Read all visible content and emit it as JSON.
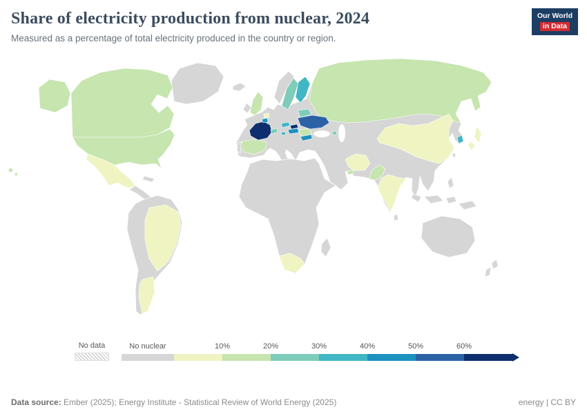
{
  "header": {
    "title": "Share of electricity production from nuclear, 2024",
    "subtitle": "Measured as a percentage of total electricity produced in the country or region.",
    "logo": {
      "line1": "Our World",
      "line2": "in Data",
      "bg": "#1d3d63",
      "accent": "#d42b32"
    }
  },
  "legend": {
    "no_data_label": "No data",
    "no_nuclear_label": "No nuclear",
    "no_nuclear_color": "#d6d6d6",
    "bins": [
      {
        "min_label": "",
        "color": "#eff4c2"
      },
      {
        "min_label": "10%",
        "color": "#c6e5af"
      },
      {
        "min_label": "20%",
        "color": "#7fccba"
      },
      {
        "min_label": "30%",
        "color": "#41b6c4"
      },
      {
        "min_label": "40%",
        "color": "#1d91c0"
      },
      {
        "min_label": "50%",
        "color": "#2c62a5"
      },
      {
        "min_label": "60%",
        "color": "#0e2f6d"
      }
    ]
  },
  "footer": {
    "source_label": "Data source:",
    "source_text": " Ember (2025); Energy Institute - Statistical Review of World Energy (2025)",
    "license": "energy | CC BY"
  },
  "chart_data": {
    "type": "heatmap",
    "subtype": "choropleth-world-map",
    "title": "Share of electricity production from nuclear, 2024",
    "unit": "% of total electricity production",
    "year": "2024",
    "categories": [
      "No data",
      "No nuclear",
      "0–10%",
      "10–20%",
      "20–30%",
      "30–40%",
      "40–50%",
      "50–60%",
      "60%+"
    ],
    "bin_colors": {
      "No nuclear": "#d6d6d6",
      "0–10%": "#eff4c2",
      "10–20%": "#c6e5af",
      "20–30%": "#7fccba",
      "30–40%": "#41b6c4",
      "40–50%": "#1d91c0",
      "50–60%": "#2c62a5",
      "60%+": "#0e2f6d"
    },
    "countries": [
      {
        "id": "france",
        "name": "France",
        "bin": "60%+"
      },
      {
        "id": "slovakia",
        "name": "Slovakia",
        "bin": "60%+"
      },
      {
        "id": "ukraine",
        "name": "Ukraine",
        "bin": "50–60%"
      },
      {
        "id": "hungary",
        "name": "Hungary",
        "bin": "40–50%"
      },
      {
        "id": "belgium",
        "name": "Belgium",
        "bin": "40–50%"
      },
      {
        "id": "bulgaria",
        "name": "Bulgaria",
        "bin": "40–50%"
      },
      {
        "id": "czechia",
        "name": "Czechia",
        "bin": "30–40%"
      },
      {
        "id": "finland",
        "name": "Finland",
        "bin": "30–40%"
      },
      {
        "id": "slovenia",
        "name": "Slovenia",
        "bin": "30–40%"
      },
      {
        "id": "south-korea",
        "name": "South Korea",
        "bin": "30–40%"
      },
      {
        "id": "sweden",
        "name": "Sweden",
        "bin": "20–30%"
      },
      {
        "id": "switzerland",
        "name": "Switzerland",
        "bin": "20–30%"
      },
      {
        "id": "belarus",
        "name": "Belarus",
        "bin": "20–30%"
      },
      {
        "id": "armenia",
        "name": "Armenia",
        "bin": "20–30%"
      },
      {
        "id": "united-states",
        "name": "United States",
        "bin": "10–20%"
      },
      {
        "id": "canada",
        "name": "Canada",
        "bin": "10–20%"
      },
      {
        "id": "russia",
        "name": "Russia",
        "bin": "10–20%"
      },
      {
        "id": "united-kingdom",
        "name": "United Kingdom",
        "bin": "10–20%"
      },
      {
        "id": "spain",
        "name": "Spain",
        "bin": "10–20%"
      },
      {
        "id": "romania",
        "name": "Romania",
        "bin": "10–20%"
      },
      {
        "id": "pakistan",
        "name": "Pakistan",
        "bin": "10–20%"
      },
      {
        "id": "united-arab-emirates",
        "name": "United Arab Emirates",
        "bin": "10–20%"
      },
      {
        "id": "mexico",
        "name": "Mexico",
        "bin": "0–10%"
      },
      {
        "id": "brazil",
        "name": "Brazil",
        "bin": "0–10%"
      },
      {
        "id": "argentina",
        "name": "Argentina",
        "bin": "0–10%"
      },
      {
        "id": "china",
        "name": "China",
        "bin": "0–10%"
      },
      {
        "id": "india",
        "name": "India",
        "bin": "0–10%"
      },
      {
        "id": "japan",
        "name": "Japan",
        "bin": "0–10%"
      },
      {
        "id": "iran",
        "name": "Iran",
        "bin": "0–10%"
      },
      {
        "id": "netherlands",
        "name": "Netherlands",
        "bin": "0–10%"
      },
      {
        "id": "south-africa",
        "name": "South Africa",
        "bin": "0–10%"
      }
    ]
  }
}
